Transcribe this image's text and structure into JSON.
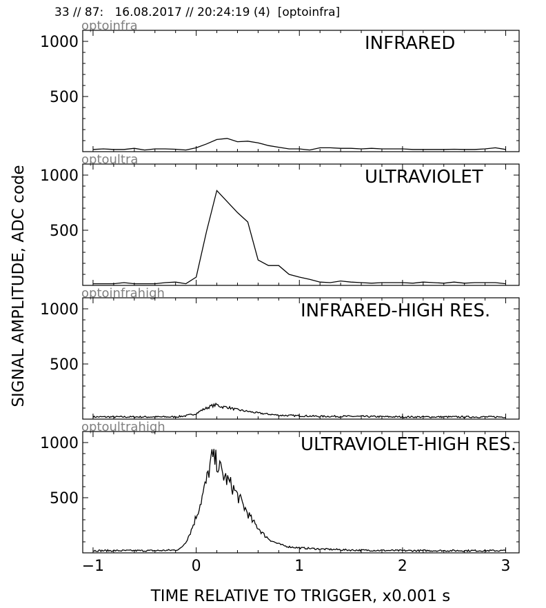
{
  "figure_title": "33 // 87:   16.08.2017 // 20:24:19 (4)  [optoinfra]",
  "ylabel": "SIGNAL AMPLITUDE,  ADC code",
  "xlabel": "TIME RELATIVE TO TRIGGER,   x0.001 s",
  "x_ticks": [
    "−1",
    "0",
    "1",
    "2",
    "3"
  ],
  "y_ticks": [
    "500",
    "1000"
  ],
  "colors": {
    "line": "#000000",
    "channel_label": "#808080",
    "axes": "#000000"
  },
  "chart_data": [
    {
      "type": "line",
      "channel": "optoinfra",
      "title": "INFRARED",
      "xlim": [
        -1.1,
        3.13
      ],
      "ylim": [
        0,
        1100
      ],
      "grid": false,
      "x": [
        -1.0,
        -0.9,
        -0.8,
        -0.7,
        -0.6,
        -0.5,
        -0.4,
        -0.3,
        -0.2,
        -0.1,
        0.0,
        0.1,
        0.2,
        0.3,
        0.4,
        0.5,
        0.6,
        0.7,
        0.8,
        0.9,
        1.0,
        1.1,
        1.2,
        1.3,
        1.4,
        1.5,
        1.6,
        1.7,
        1.8,
        1.9,
        2.0,
        2.1,
        2.2,
        2.3,
        2.4,
        2.5,
        2.6,
        2.7,
        2.8,
        2.9,
        3.0
      ],
      "y": [
        20,
        25,
        20,
        20,
        30,
        15,
        25,
        25,
        22,
        15,
        35,
        70,
        110,
        120,
        90,
        95,
        80,
        55,
        40,
        25,
        25,
        15,
        35,
        35,
        30,
        30,
        25,
        30,
        25,
        25,
        25,
        20,
        20,
        20,
        20,
        22,
        20,
        20,
        25,
        35,
        20
      ]
    },
    {
      "type": "line",
      "channel": "optoultra",
      "title": "ULTRAVIOLET",
      "xlim": [
        -1.1,
        3.13
      ],
      "ylim": [
        0,
        1100
      ],
      "grid": false,
      "x": [
        -1.0,
        -0.9,
        -0.8,
        -0.7,
        -0.6,
        -0.5,
        -0.4,
        -0.3,
        -0.2,
        -0.1,
        0.0,
        0.1,
        0.2,
        0.3,
        0.4,
        0.5,
        0.6,
        0.7,
        0.8,
        0.9,
        1.0,
        1.1,
        1.2,
        1.3,
        1.4,
        1.5,
        1.6,
        1.7,
        1.8,
        1.9,
        2.0,
        2.1,
        2.2,
        2.3,
        2.4,
        2.5,
        2.6,
        2.7,
        2.8,
        2.9,
        3.0
      ],
      "y": [
        15,
        15,
        15,
        25,
        15,
        15,
        15,
        25,
        30,
        15,
        75,
        490,
        860,
        760,
        660,
        575,
        230,
        180,
        180,
        100,
        75,
        55,
        30,
        25,
        40,
        30,
        25,
        20,
        25,
        25,
        25,
        20,
        30,
        25,
        20,
        30,
        20,
        25,
        25,
        25,
        15
      ]
    },
    {
      "type": "line",
      "channel": "optoinfrahigh",
      "title": "INFRARED-HIGH RES.",
      "xlim": [
        -1.1,
        3.13
      ],
      "ylim": [
        0,
        1100
      ],
      "grid": false,
      "x": [
        -1.0,
        -0.8,
        -0.6,
        -0.4,
        -0.2,
        -0.1,
        0.0,
        0.05,
        0.1,
        0.15,
        0.2,
        0.25,
        0.3,
        0.35,
        0.4,
        0.5,
        0.6,
        0.7,
        0.8,
        1.0,
        1.2,
        1.5,
        2.0,
        2.5,
        3.0
      ],
      "y": [
        20,
        20,
        20,
        20,
        20,
        30,
        50,
        80,
        100,
        120,
        130,
        110,
        110,
        95,
        85,
        70,
        55,
        45,
        35,
        30,
        25,
        25,
        20,
        20,
        20
      ],
      "style": "noisy"
    },
    {
      "type": "line",
      "channel": "optoultrahigh",
      "title": "ULTRAVIOLET-HIGH RES.",
      "xlim": [
        -1.1,
        3.13
      ],
      "ylim": [
        0,
        1100
      ],
      "grid": false,
      "x": [
        -1.0,
        -0.8,
        -0.6,
        -0.4,
        -0.2,
        -0.15,
        -0.1,
        -0.05,
        0.0,
        0.05,
        0.1,
        0.15,
        0.2,
        0.25,
        0.3,
        0.35,
        0.4,
        0.45,
        0.5,
        0.55,
        0.6,
        0.65,
        0.7,
        0.75,
        0.8,
        0.85,
        0.9,
        1.0,
        1.2,
        1.5,
        2.0,
        2.5,
        3.0
      ],
      "y": [
        20,
        20,
        20,
        20,
        25,
        40,
        100,
        200,
        330,
        480,
        650,
        860,
        830,
        720,
        660,
        600,
        520,
        440,
        360,
        280,
        230,
        170,
        130,
        100,
        80,
        65,
        55,
        45,
        35,
        25,
        20,
        20,
        20
      ],
      "style": "noisy"
    }
  ]
}
